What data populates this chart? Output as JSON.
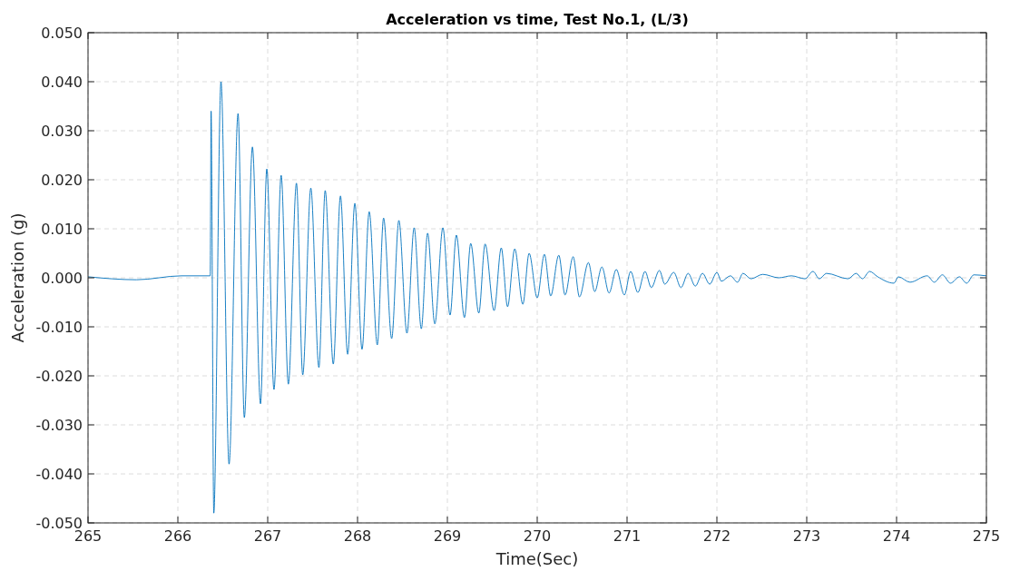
{
  "chart_data": {
    "type": "line",
    "title": "Acceleration vs time, Test No.1, (L/3)",
    "xlabel": "Time(Sec)",
    "ylabel": "Acceleration (g)",
    "xlim": [
      265,
      275
    ],
    "xticks": [
      265,
      266,
      267,
      268,
      269,
      270,
      271,
      272,
      273,
      274,
      275
    ],
    "ylim": [
      -0.05,
      0.05
    ],
    "yticks": [
      {
        "value": -0.05,
        "label": "-0.050"
      },
      {
        "value": -0.04,
        "label": "-0.040"
      },
      {
        "value": -0.03,
        "label": "-0.030"
      },
      {
        "value": -0.02,
        "label": "-0.020"
      },
      {
        "value": -0.01,
        "label": "-0.010"
      },
      {
        "value": 0,
        "label": "0.000"
      },
      {
        "value": 0.01,
        "label": "0.010"
      },
      {
        "value": 0.02,
        "label": "0.020"
      },
      {
        "value": 0.03,
        "label": "0.030"
      },
      {
        "value": 0.04,
        "label": "0.040"
      },
      {
        "value": 0.05,
        "label": "0.050"
      }
    ],
    "grid": true,
    "line_style": "solid",
    "marker": "none",
    "series": [
      {
        "color": "#0072bd",
        "x": [
          265.0,
          265.54,
          266.04,
          266.36,
          266.37,
          266.4,
          266.48,
          266.57,
          266.67,
          266.74,
          266.83,
          266.92,
          266.99,
          267.07,
          267.15,
          267.23,
          267.32,
          267.39,
          267.48,
          267.57,
          267.64,
          267.73,
          267.81,
          267.89,
          267.97,
          268.05,
          268.13,
          268.22,
          268.29,
          268.38,
          268.46,
          268.55,
          268.63,
          268.71,
          268.78,
          268.86,
          268.95,
          269.03,
          269.1,
          269.19,
          269.26,
          269.35,
          269.42,
          269.52,
          269.6,
          269.67,
          269.75,
          269.84,
          269.91,
          270.0,
          270.08,
          270.15,
          270.24,
          270.31,
          270.4,
          270.47,
          270.57,
          270.64,
          270.72,
          270.8,
          270.88,
          270.97,
          271.04,
          271.12,
          271.2,
          271.27,
          271.36,
          271.42,
          271.52,
          271.6,
          271.68,
          271.76,
          271.84,
          271.92,
          272.0,
          272.05,
          272.15,
          272.23,
          272.29,
          272.38,
          272.51,
          272.69,
          272.83,
          272.98,
          273.07,
          273.14,
          273.22,
          273.46,
          273.55,
          273.62,
          273.7,
          273.79,
          273.97,
          274.02,
          274.15,
          274.34,
          274.42,
          274.51,
          274.6,
          274.7,
          274.78,
          274.86,
          275.0
        ],
        "values": [
          0.0002,
          -0.0004,
          0.0004,
          0.0004,
          0.034,
          -0.048,
          0.04,
          -0.038,
          0.0335,
          -0.0285,
          0.0267,
          -0.0257,
          0.0222,
          -0.0228,
          0.0209,
          -0.0217,
          0.0193,
          -0.0198,
          0.0183,
          -0.0183,
          0.0178,
          -0.0176,
          0.0167,
          -0.0156,
          0.0152,
          -0.0146,
          0.0135,
          -0.0137,
          0.0122,
          -0.0124,
          0.0117,
          -0.0113,
          0.0102,
          -0.0104,
          0.0091,
          -0.0094,
          0.0102,
          -0.0076,
          0.0087,
          -0.0081,
          0.007,
          -0.0072,
          0.0069,
          -0.0067,
          0.0061,
          -0.0059,
          0.0059,
          -0.0054,
          0.005,
          -0.0041,
          0.0048,
          -0.0037,
          0.0046,
          -0.0035,
          0.0043,
          -0.0039,
          0.0031,
          -0.0028,
          0.0022,
          -0.0031,
          0.0017,
          -0.0035,
          0.0013,
          -0.003,
          0.0013,
          -0.002,
          0.0015,
          -0.0013,
          0.0011,
          -0.002,
          0.0009,
          -0.0017,
          0.0009,
          -0.0013,
          0.0011,
          -0.0007,
          0.0004,
          -0.0009,
          0.0009,
          -0.0002,
          0.0007,
          0.0,
          0.0004,
          -0.0002,
          0.0013,
          -0.0002,
          0.0009,
          -0.0002,
          0.0009,
          -0.0002,
          0.0013,
          0.0002,
          -0.0011,
          0.0002,
          -0.0009,
          0.0004,
          -0.0009,
          0.0006,
          -0.0011,
          0.0002,
          -0.0011,
          0.0006,
          0.0004
        ]
      }
    ]
  }
}
